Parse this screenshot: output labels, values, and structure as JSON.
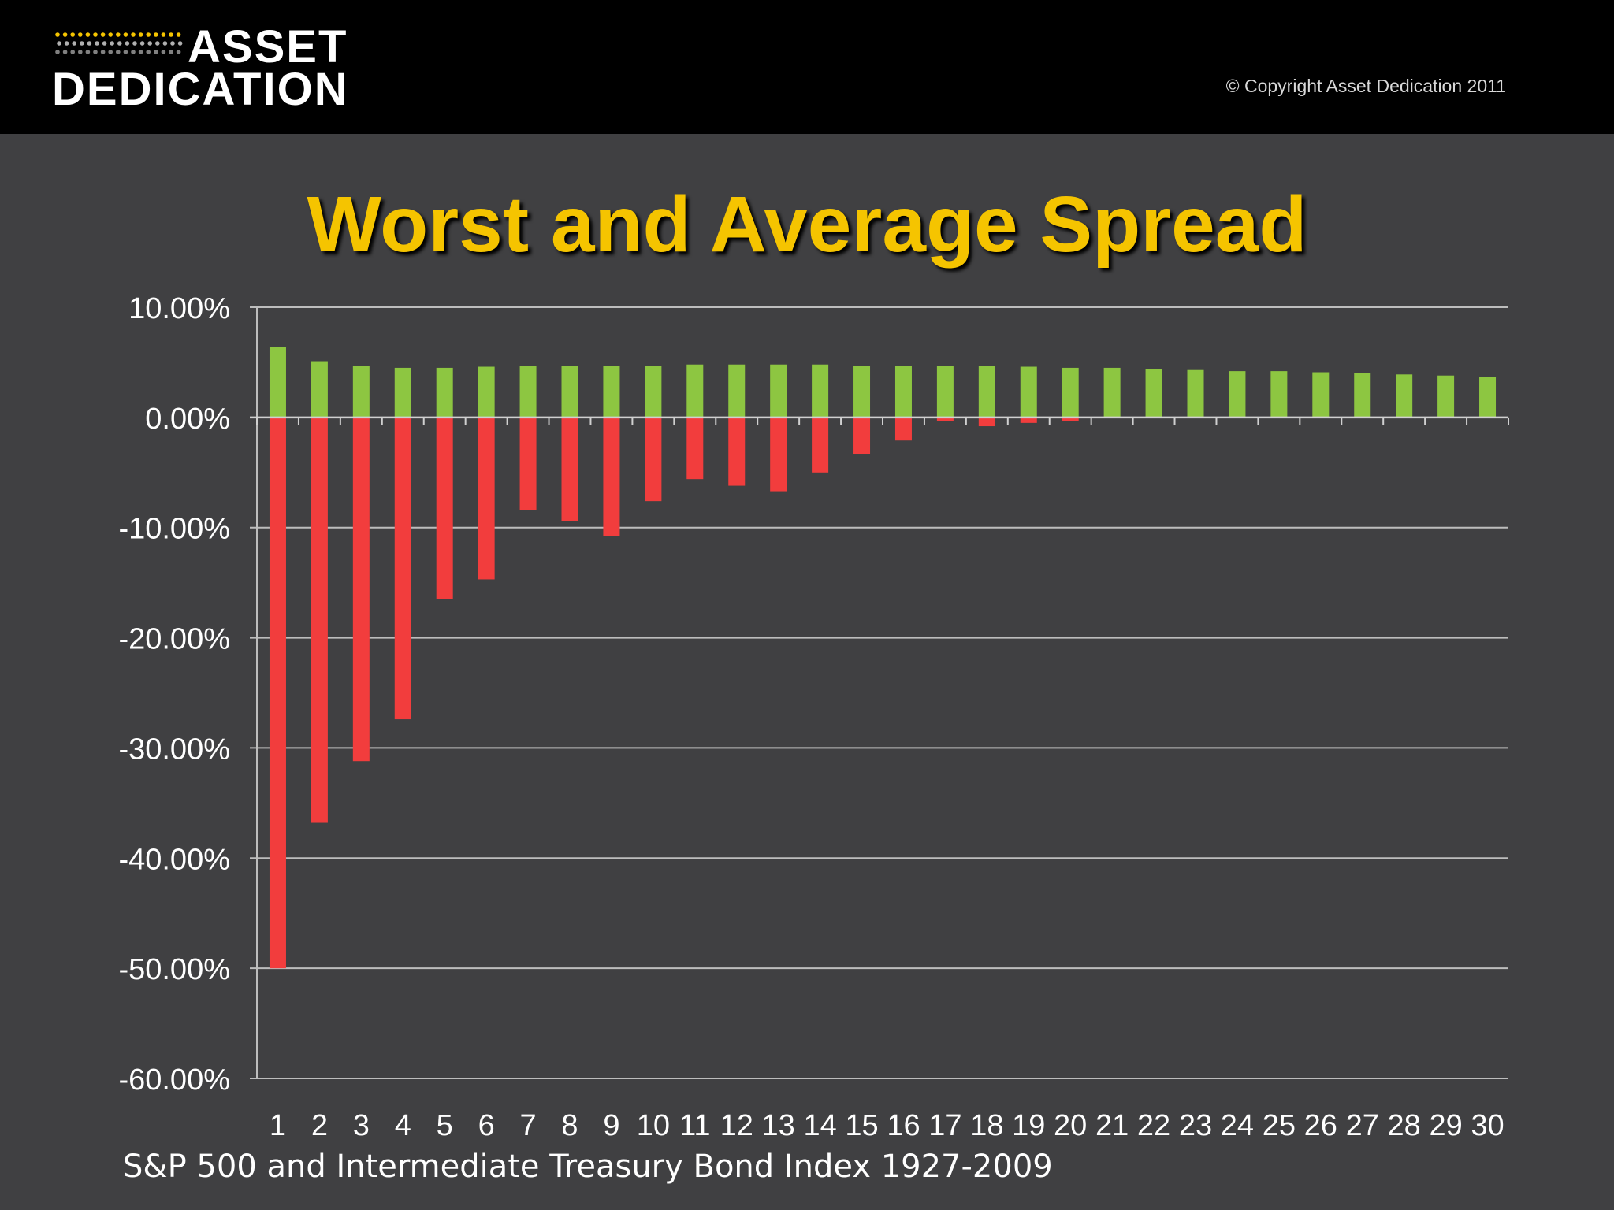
{
  "header": {
    "logo_line1": "ASSET",
    "logo_line2": "DEDICATION",
    "copyright": "© Copyright Asset Dedication 2011"
  },
  "colors": {
    "background": "#404042",
    "header": "#000000",
    "title": "#f5c400",
    "average_bar": "#8dc641",
    "worst_bar": "#f23d3d",
    "gridline": "#bdbdbd"
  },
  "chart_data": {
    "type": "bar",
    "title": "Worst and Average Spread",
    "categories": [
      "1",
      "2",
      "3",
      "4",
      "5",
      "6",
      "7",
      "8",
      "9",
      "10",
      "11",
      "12",
      "13",
      "14",
      "15",
      "16",
      "17",
      "18",
      "19",
      "20",
      "21",
      "22",
      "23",
      "24",
      "25",
      "26",
      "27",
      "28",
      "29",
      "30"
    ],
    "series": [
      {
        "color": "#8dc641",
        "values": [
          6.4,
          5.1,
          4.7,
          4.5,
          4.5,
          4.6,
          4.7,
          4.7,
          4.7,
          4.7,
          4.8,
          4.8,
          4.8,
          4.8,
          4.7,
          4.7,
          4.7,
          4.7,
          4.6,
          4.5,
          4.5,
          4.4,
          4.3,
          4.2,
          4.2,
          4.1,
          4.0,
          3.9,
          3.8,
          3.7
        ]
      },
      {
        "color": "#f23d3d",
        "values": [
          -50.0,
          -36.8,
          -31.2,
          -27.4,
          -16.5,
          -14.7,
          -8.4,
          -9.4,
          -10.8,
          -7.6,
          -5.6,
          -6.2,
          -6.7,
          -5.0,
          -3.3,
          -2.1,
          -0.3,
          -0.8,
          -0.5,
          -0.3,
          0,
          0,
          0,
          0,
          0,
          0,
          0,
          0,
          0,
          0
        ]
      }
    ],
    "ylim": [
      -60,
      10
    ],
    "yticks": [
      10,
      0,
      -10,
      -20,
      -30,
      -40,
      -50,
      -60
    ],
    "ytick_labels": [
      "10.00%",
      "0.00%",
      "-10.00%",
      "-20.00%",
      "-30.00%",
      "-40.00%",
      "-50.00%",
      "-60.00%"
    ],
    "grid": true,
    "footnote": "S&P 500 and Intermediate Treasury Bond Index 1927-2009"
  }
}
